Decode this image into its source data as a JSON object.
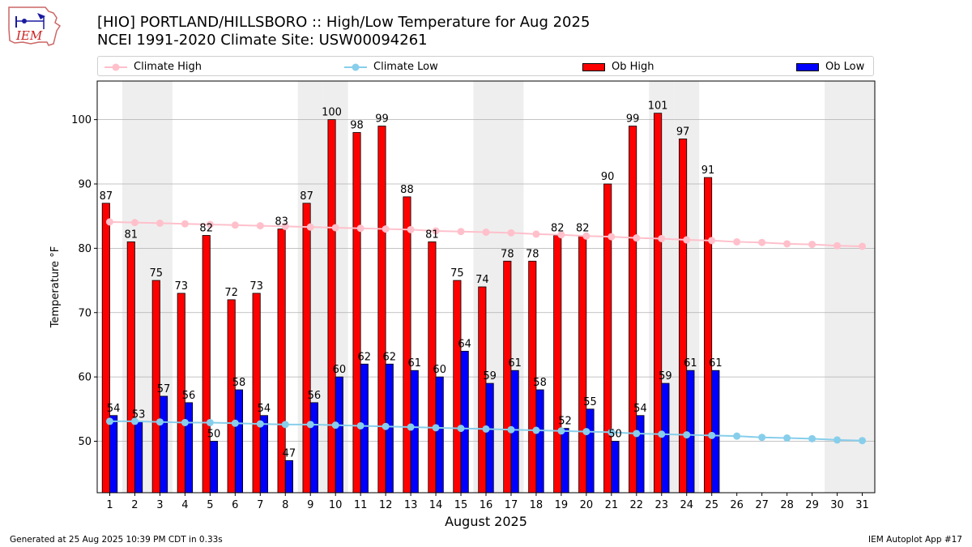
{
  "logo": {
    "text": "IEM"
  },
  "title": {
    "line1": "[HIO] PORTLAND/HILLSBORO :: High/Low Temperature for Aug 2025",
    "line2": "NCEI 1991-2020 Climate Site: USW00094261"
  },
  "legend": [
    {
      "label": "Climate High",
      "color": "#ffc0cb",
      "kind": "line-marker"
    },
    {
      "label": "Climate Low",
      "color": "#87ceeb",
      "kind": "line-marker"
    },
    {
      "label": "Ob High",
      "color": "#ff0000",
      "kind": "bar"
    },
    {
      "label": "Ob Low",
      "color": "#0000ff",
      "kind": "bar"
    }
  ],
  "footer": {
    "left": "Generated at 25 Aug 2025 10:39 PM CDT in 0.33s",
    "right": "IEM Autoplot App #17"
  },
  "chart_data": {
    "type": "bar",
    "xlabel": "August 2025",
    "ylabel": "Temperature °F",
    "xlim": [
      0.5,
      31.5
    ],
    "ylim": [
      42,
      106
    ],
    "yticks": [
      50,
      60,
      70,
      80,
      90,
      100
    ],
    "grid": "y",
    "weekend_days": [
      2,
      3,
      9,
      10,
      16,
      17,
      23,
      24,
      30,
      31
    ],
    "shading_color": "#eeeeee",
    "categories": [
      "1",
      "2",
      "3",
      "4",
      "5",
      "6",
      "7",
      "8",
      "9",
      "10",
      "11",
      "12",
      "13",
      "14",
      "15",
      "16",
      "17",
      "18",
      "19",
      "20",
      "21",
      "22",
      "23",
      "24",
      "25",
      "26",
      "27",
      "28",
      "29",
      "30",
      "31"
    ],
    "series": [
      {
        "name": "Ob High",
        "type": "bar",
        "color": "#ff0000",
        "values": [
          87,
          81,
          75,
          73,
          82,
          72,
          73,
          83,
          87,
          100,
          98,
          99,
          88,
          81,
          75,
          74,
          78,
          78,
          82,
          82,
          90,
          99,
          101,
          97,
          91,
          null,
          null,
          null,
          null,
          null,
          null
        ]
      },
      {
        "name": "Ob Low",
        "type": "bar",
        "color": "#0000ff",
        "values": [
          54,
          53,
          57,
          56,
          50,
          58,
          54,
          47,
          56,
          60,
          62,
          62,
          61,
          60,
          64,
          59,
          61,
          58,
          52,
          55,
          50,
          54,
          59,
          61,
          61,
          null,
          null,
          null,
          null,
          null,
          null
        ]
      },
      {
        "name": "Climate High",
        "type": "line",
        "color": "#ffc0cb",
        "values": [
          84.1,
          84.0,
          83.9,
          83.8,
          83.7,
          83.6,
          83.5,
          83.4,
          83.3,
          83.2,
          83.1,
          83.0,
          82.9,
          82.7,
          82.6,
          82.5,
          82.4,
          82.2,
          82.1,
          81.9,
          81.8,
          81.6,
          81.5,
          81.3,
          81.2,
          81.0,
          80.9,
          80.7,
          80.6,
          80.4,
          80.3
        ]
      },
      {
        "name": "Climate Low",
        "type": "line",
        "color": "#87ceeb",
        "values": [
          53.1,
          53.1,
          53.0,
          52.9,
          52.9,
          52.8,
          52.7,
          52.6,
          52.6,
          52.5,
          52.4,
          52.3,
          52.2,
          52.1,
          52.0,
          51.9,
          51.8,
          51.7,
          51.6,
          51.5,
          51.4,
          51.2,
          51.1,
          51.0,
          50.9,
          50.8,
          50.6,
          50.5,
          50.4,
          50.2,
          50.1
        ]
      }
    ]
  }
}
